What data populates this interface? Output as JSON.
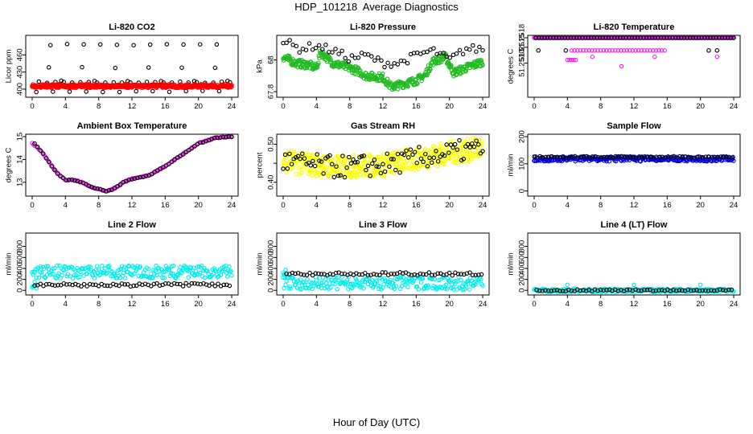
{
  "page": {
    "title": "HDP_101218  Average Diagnostics",
    "x_caption": "Hour of Day (UTC)"
  },
  "chart_data": [
    {
      "type": "scatter",
      "title": "Li-820 CO2",
      "ylabel": "Licor ppm",
      "xlim": [
        0,
        24
      ],
      "ylim": [
        390,
        490
      ],
      "yticks": [
        400,
        430,
        460
      ],
      "xticks": [
        0,
        4,
        8,
        12,
        16,
        20,
        24
      ],
      "series": [
        {
          "name": "raw",
          "color": "#000000",
          "rows": [
            [
              412,
              0.8,
              24,
              1.0,
              0.9
            ],
            [
              396,
              0.5,
              24,
              2.0,
              0.9
            ],
            [
              438,
              2.0,
              24,
              4.0,
              0.7
            ],
            [
              414,
              3.5,
              24,
              4.0,
              0.6
            ],
            [
              478,
              2.2,
              24,
              2.0,
              0.8
            ]
          ]
        },
        {
          "name": "average",
          "color": "#ff0000",
          "rows": [
            [
              405,
              0.0,
              24,
              0.08,
              2.0
            ],
            [
              406,
              0.0,
              24,
              0.1,
              2.0
            ]
          ]
        }
      ]
    },
    {
      "type": "scatter",
      "title": "Li-820 Pressure",
      "ylabel": "kPa",
      "xlim": [
        0,
        24
      ],
      "ylim": [
        67.78,
        68.14
      ],
      "yticks": [
        67.8,
        68.0
      ],
      "xticks": [
        0,
        4,
        8,
        12,
        16,
        20,
        24
      ],
      "series": [
        {
          "name": "average",
          "color": "#22bb22",
          "trend": [
            [
              0,
              68.02
            ],
            [
              1.5,
              67.98
            ],
            [
              3,
              67.97
            ],
            [
              4,
              67.95
            ],
            [
              4.5,
              68.05
            ],
            [
              6,
              67.98
            ],
            [
              8,
              67.95
            ],
            [
              9,
              67.93
            ],
            [
              10,
              67.9
            ],
            [
              12,
              67.89
            ],
            [
              13,
              67.83
            ],
            [
              16,
              67.87
            ],
            [
              17,
              67.9
            ],
            [
              18,
              67.99
            ],
            [
              19.5,
              68.02
            ],
            [
              20.5,
              67.92
            ],
            [
              22,
              67.95
            ],
            [
              24,
              67.99
            ]
          ],
          "spread": 0.025,
          "n": 420
        },
        {
          "name": "raw",
          "color": "#000000",
          "trend": [
            [
              0,
              68.12
            ],
            [
              2,
              68.07
            ],
            [
              4,
              68.09
            ],
            [
              6,
              68.06
            ],
            [
              8,
              68.01
            ],
            [
              10,
              68.03
            ],
            [
              12,
              67.98
            ],
            [
              14,
              67.98
            ],
            [
              16,
              68.03
            ],
            [
              18,
              68.06
            ],
            [
              20,
              68.0
            ],
            [
              22,
              68.07
            ],
            [
              24,
              68.07
            ]
          ],
          "spread": 0.025,
          "n": 62
        }
      ]
    },
    {
      "type": "scatter",
      "title": "Li-820 Temperature",
      "ylabel": "degrees C",
      "xlim": [
        0,
        24
      ],
      "ylim": [
        51.25,
        51.2518
      ],
      "yticks": [
        51.251,
        51.2515,
        51.2518
      ],
      "ytick_labels": [
        "51.2510",
        "51.2515",
        "51.2518"
      ],
      "xticks": [
        0,
        4,
        8,
        12,
        16,
        20,
        24
      ],
      "series": [
        {
          "name": "average",
          "color": "#ee22ee",
          "rows": [
            [
              51.2518,
              0.0,
              24,
              0.06,
              0.0
            ],
            [
              51.2514,
              4.5,
              16,
              0.35,
              0.0
            ],
            [
              51.2512,
              7.0,
              24,
              7.5,
              0.0
            ],
            [
              51.2511,
              4.0,
              5,
              0.25,
              0.0
            ],
            [
              51.2509,
              10.5,
              11,
              1.0,
              0.0
            ]
          ]
        },
        {
          "name": "raw",
          "color": "#000000",
          "rows": [
            [
              51.2518,
              0.2,
              24,
              0.35,
              0.0
            ],
            [
              51.2514,
              0.5,
              1,
              1.0,
              0.0
            ],
            [
              51.2514,
              3.8,
              4,
              1.0,
              0.0
            ],
            [
              51.2514,
              21.0,
              22,
              1.0,
              0.0
            ]
          ]
        }
      ]
    },
    {
      "type": "scatter",
      "title": "Ambient Box Temperature",
      "ylabel": "degrees C",
      "xlim": [
        0,
        24
      ],
      "ylim": [
        12.5,
        15.0
      ],
      "yticks": [
        13.0,
        14.0,
        15.0
      ],
      "xticks": [
        0,
        4,
        8,
        12,
        16,
        20,
        24
      ],
      "series": [
        {
          "name": "average",
          "color": "#ee22ee",
          "trend": [
            [
              0,
              14.7
            ],
            [
              1,
              14.4
            ],
            [
              2,
              13.9
            ],
            [
              3,
              13.4
            ],
            [
              4,
              13.1
            ],
            [
              5,
              13.1
            ],
            [
              6,
              13.0
            ],
            [
              7,
              12.8
            ],
            [
              8,
              12.7
            ],
            [
              9,
              12.6
            ],
            [
              10,
              12.75
            ],
            [
              11,
              13.0
            ],
            [
              12,
              13.15
            ],
            [
              14,
              13.3
            ],
            [
              15,
              13.5
            ],
            [
              16,
              13.7
            ],
            [
              18,
              14.2
            ],
            [
              20,
              14.7
            ],
            [
              22,
              14.95
            ],
            [
              24,
              15.0
            ]
          ],
          "spread": 0.02,
          "n": 150
        },
        {
          "name": "raw",
          "color": "#000000",
          "trend": [
            [
              0.3,
              14.7
            ],
            [
              1,
              14.4
            ],
            [
              2,
              13.9
            ],
            [
              3,
              13.4
            ],
            [
              4,
              13.1
            ],
            [
              5,
              13.1
            ],
            [
              6,
              13.0
            ],
            [
              7,
              12.8
            ],
            [
              8,
              12.7
            ],
            [
              9,
              12.6
            ],
            [
              10,
              12.75
            ],
            [
              11,
              13.0
            ],
            [
              12,
              13.15
            ],
            [
              14,
              13.3
            ],
            [
              15,
              13.5
            ],
            [
              16,
              13.7
            ],
            [
              18,
              14.2
            ],
            [
              20,
              14.7
            ],
            [
              22,
              14.95
            ],
            [
              24,
              15.0
            ]
          ],
          "spread": 0.02,
          "n": 70
        }
      ]
    },
    {
      "type": "scatter",
      "title": "Gas Stream RH",
      "ylabel": "percent",
      "xlim": [
        0,
        24
      ],
      "ylim": [
        0.37,
        0.52
      ],
      "yticks": [
        0.4,
        0.45,
        0.5
      ],
      "ytick_labels": [
        "0.40",
        "",
        "0.50"
      ],
      "xticks": [
        0,
        4,
        8,
        12,
        16,
        20,
        24
      ],
      "series": [
        {
          "name": "average",
          "color": "#ffff00",
          "trend": [
            [
              0,
              0.455
            ],
            [
              6,
              0.44
            ],
            [
              12,
              0.445
            ],
            [
              18,
              0.47
            ],
            [
              24,
              0.49
            ]
          ],
          "spread": 0.03,
          "n": 480
        },
        {
          "name": "raw",
          "color": "#000000",
          "trend": [
            [
              0,
              0.455
            ],
            [
              6,
              0.44
            ],
            [
              12,
              0.445
            ],
            [
              18,
              0.47
            ],
            [
              24,
              0.49
            ]
          ],
          "spread": 0.03,
          "n": 95
        }
      ]
    },
    {
      "type": "scatter",
      "title": "Sample Flow",
      "ylabel": "ml/min",
      "xlim": [
        0,
        24
      ],
      "ylim": [
        -10,
        200
      ],
      "yticks": [
        0,
        100,
        200
      ],
      "xticks": [
        0,
        4,
        8,
        12,
        16,
        20,
        24
      ],
      "series": [
        {
          "name": "average",
          "color": "#0000dd",
          "rows": [
            [
              118,
              0.0,
              24,
              0.08,
              3.0
            ]
          ]
        },
        {
          "name": "raw",
          "color": "#000000",
          "rows": [
            [
              125,
              0.0,
              24,
              0.35,
              1.0
            ]
          ]
        }
      ]
    },
    {
      "type": "scatter",
      "title": "Line 2 Flow",
      "ylabel": "ml/min",
      "xlim": [
        0,
        24
      ],
      "ylim": [
        -40,
        1000
      ],
      "yticks": [
        0,
        200,
        400,
        600,
        800
      ],
      "xticks": [
        0,
        4,
        8,
        12,
        16,
        20,
        24
      ],
      "series": [
        {
          "name": "average",
          "color": "#00eeee",
          "rows": [
            [
              335,
              0.0,
              24,
              0.1,
              8.0
            ],
            [
              100,
              0.0,
              0.5,
              0.1,
              5.0
            ]
          ]
        },
        {
          "name": "raw",
          "color": "#000000",
          "rows": [
            [
              100,
              0.3,
              24,
              0.35,
              2.0
            ]
          ]
        }
      ]
    },
    {
      "type": "scatter",
      "title": "Line 3 Flow",
      "ylabel": "ml/min",
      "xlim": [
        0,
        24
      ],
      "ylim": [
        -40,
        1000
      ],
      "yticks": [
        0,
        200,
        400,
        600,
        800
      ],
      "xticks": [
        0,
        4,
        8,
        12,
        16,
        20,
        24
      ],
      "series": [
        {
          "name": "average",
          "color": "#00eeee",
          "rows": [
            [
              130,
              0.0,
              24,
              0.1,
              8.0
            ],
            [
              300,
              0.0,
              0.4,
              0.1,
              5.0
            ]
          ]
        },
        {
          "name": "raw",
          "color": "#000000",
          "rows": [
            [
              300,
              0.4,
              24,
              0.35,
              2.0
            ]
          ]
        }
      ]
    },
    {
      "type": "scatter",
      "title": "Line 4 (LT) Flow",
      "ylabel": "ml/min",
      "xlim": [
        0,
        24
      ],
      "ylim": [
        -40,
        1000
      ],
      "yticks": [
        0,
        200,
        400,
        600,
        800
      ],
      "xticks": [
        0,
        4,
        8,
        12,
        16,
        20,
        24
      ],
      "series": [
        {
          "name": "average",
          "color": "#00eeee",
          "rows": [
            [
              0,
              0.0,
              24,
              0.1,
              2.0
            ],
            [
              100,
              4.0,
              4.1,
              1.0,
              0.0
            ],
            [
              100,
              12.0,
              12.1,
              1.0,
              0.0
            ],
            [
              100,
              20.0,
              20.1,
              1.0,
              0.0
            ]
          ]
        },
        {
          "name": "raw",
          "color": "#000000",
          "rows": [
            [
              0,
              0.3,
              24,
              0.35,
              1.0
            ]
          ]
        }
      ]
    }
  ]
}
